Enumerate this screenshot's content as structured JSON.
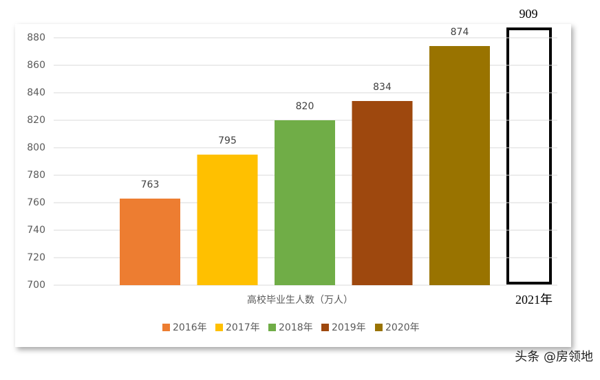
{
  "chart_data": {
    "type": "bar",
    "categories": [
      "高校毕业生人数（万人）"
    ],
    "series": [
      {
        "name": "2016年",
        "color": "#ed7d31",
        "values": [
          763
        ]
      },
      {
        "name": "2017年",
        "color": "#ffc000",
        "values": [
          795
        ]
      },
      {
        "name": "2018年",
        "color": "#70ad47",
        "values": [
          820
        ]
      },
      {
        "name": "2019年",
        "color": "#9e480e",
        "values": [
          834
        ]
      },
      {
        "name": "2020年",
        "color": "#997300",
        "values": [
          874
        ]
      }
    ],
    "ylim": [
      700,
      880
    ],
    "yticks": [
      700,
      720,
      740,
      760,
      780,
      800,
      820,
      840,
      860,
      880
    ],
    "grid": true,
    "legend": "bottom",
    "annotation": {
      "label": "2021年",
      "value": 909
    }
  },
  "watermark": "头条 @房领地"
}
